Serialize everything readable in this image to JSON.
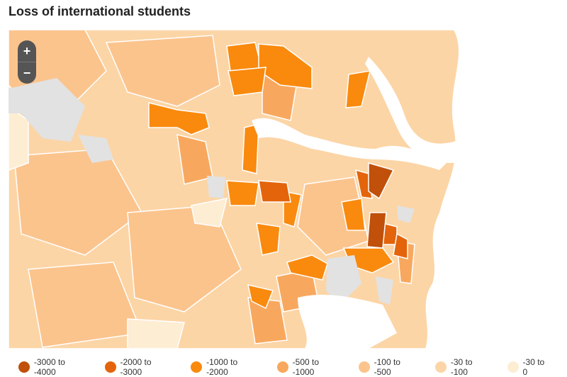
{
  "title": "Loss of international students",
  "zoom": {
    "in": "+",
    "out": "−"
  },
  "legend": [
    {
      "label": "-3000 to -4000",
      "color": "#c0500a"
    },
    {
      "label": "-2000 to -3000",
      "color": "#e4640b"
    },
    {
      "label": "-1000 to -2000",
      "color": "#f98a0e"
    },
    {
      "label": "-500 to -1000",
      "color": "#f8a85e"
    },
    {
      "label": "-100 to -500",
      "color": "#fbc48d"
    },
    {
      "label": "-30 to -100",
      "color": "#fcd5a6"
    },
    {
      "label": "-30 to 0",
      "color": "#fdedd3"
    }
  ]
}
